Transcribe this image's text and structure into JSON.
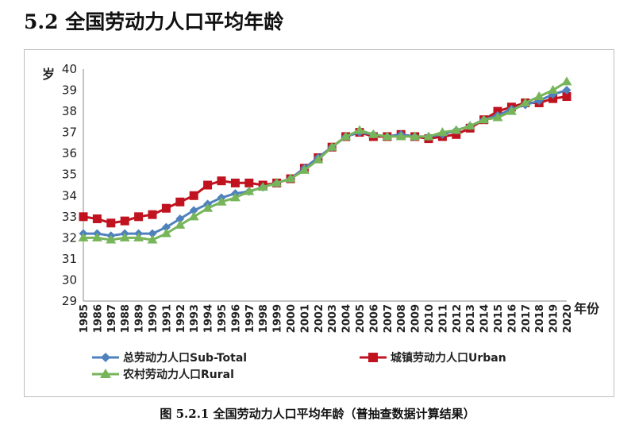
{
  "page": {
    "title": "5.2 全国劳动力人口平均年龄",
    "caption": "图 5.2.1 全国劳动力人口平均年龄（普抽查数据计算结果）"
  },
  "chart_data": {
    "type": "line",
    "ylabel": "岁",
    "xlabel": "年份",
    "ylim": [
      29,
      40
    ],
    "yticks": [
      "29",
      "30",
      "31",
      "32",
      "33",
      "34",
      "35",
      "36",
      "37",
      "38",
      "39",
      "40"
    ],
    "categories": [
      "1985",
      "1986",
      "1987",
      "1988",
      "1989",
      "1990",
      "1991",
      "1992",
      "1993",
      "1994",
      "1995",
      "1996",
      "1997",
      "1998",
      "1999",
      "2000",
      "2001",
      "2002",
      "2003",
      "2004",
      "2005",
      "2006",
      "2007",
      "2008",
      "2009",
      "2010",
      "2011",
      "2012",
      "2013",
      "2014",
      "2015",
      "2016",
      "2017",
      "2018",
      "2019",
      "2020"
    ],
    "grid": false,
    "legend_position": "bottom",
    "series": [
      {
        "name": "总劳动力人口Sub-Total",
        "color": "#4F81BD",
        "marker": "diamond",
        "values": [
          32.2,
          32.2,
          32.1,
          32.2,
          32.2,
          32.2,
          32.5,
          32.9,
          33.3,
          33.6,
          33.9,
          34.1,
          34.2,
          34.4,
          34.6,
          34.8,
          35.3,
          35.8,
          36.3,
          36.8,
          37.0,
          36.9,
          36.8,
          36.9,
          36.8,
          36.8,
          36.9,
          37.1,
          37.3,
          37.6,
          37.8,
          38.1,
          38.3,
          38.5,
          38.8,
          39.0
        ]
      },
      {
        "name": "城镇劳动力人口Urban",
        "color": "#C0121F",
        "marker": "square",
        "values": [
          33.0,
          32.9,
          32.7,
          32.8,
          33.0,
          33.1,
          33.4,
          33.7,
          34.0,
          34.5,
          34.7,
          34.6,
          34.6,
          34.5,
          34.6,
          34.8,
          35.3,
          35.8,
          36.3,
          36.8,
          37.0,
          36.8,
          36.8,
          36.9,
          36.8,
          36.7,
          36.8,
          36.9,
          37.2,
          37.6,
          38.0,
          38.2,
          38.4,
          38.4,
          38.6,
          38.7
        ]
      },
      {
        "name": "农村劳动力人口Rural",
        "color": "#77B55A",
        "marker": "triangle",
        "values": [
          32.0,
          32.0,
          31.9,
          32.0,
          32.0,
          31.9,
          32.2,
          32.6,
          33.0,
          33.4,
          33.7,
          33.9,
          34.2,
          34.4,
          34.6,
          34.8,
          35.2,
          35.7,
          36.3,
          36.8,
          37.1,
          36.9,
          36.8,
          36.8,
          36.8,
          36.8,
          37.0,
          37.1,
          37.3,
          37.6,
          37.7,
          38.0,
          38.4,
          38.7,
          39.0,
          39.4
        ]
      }
    ]
  }
}
